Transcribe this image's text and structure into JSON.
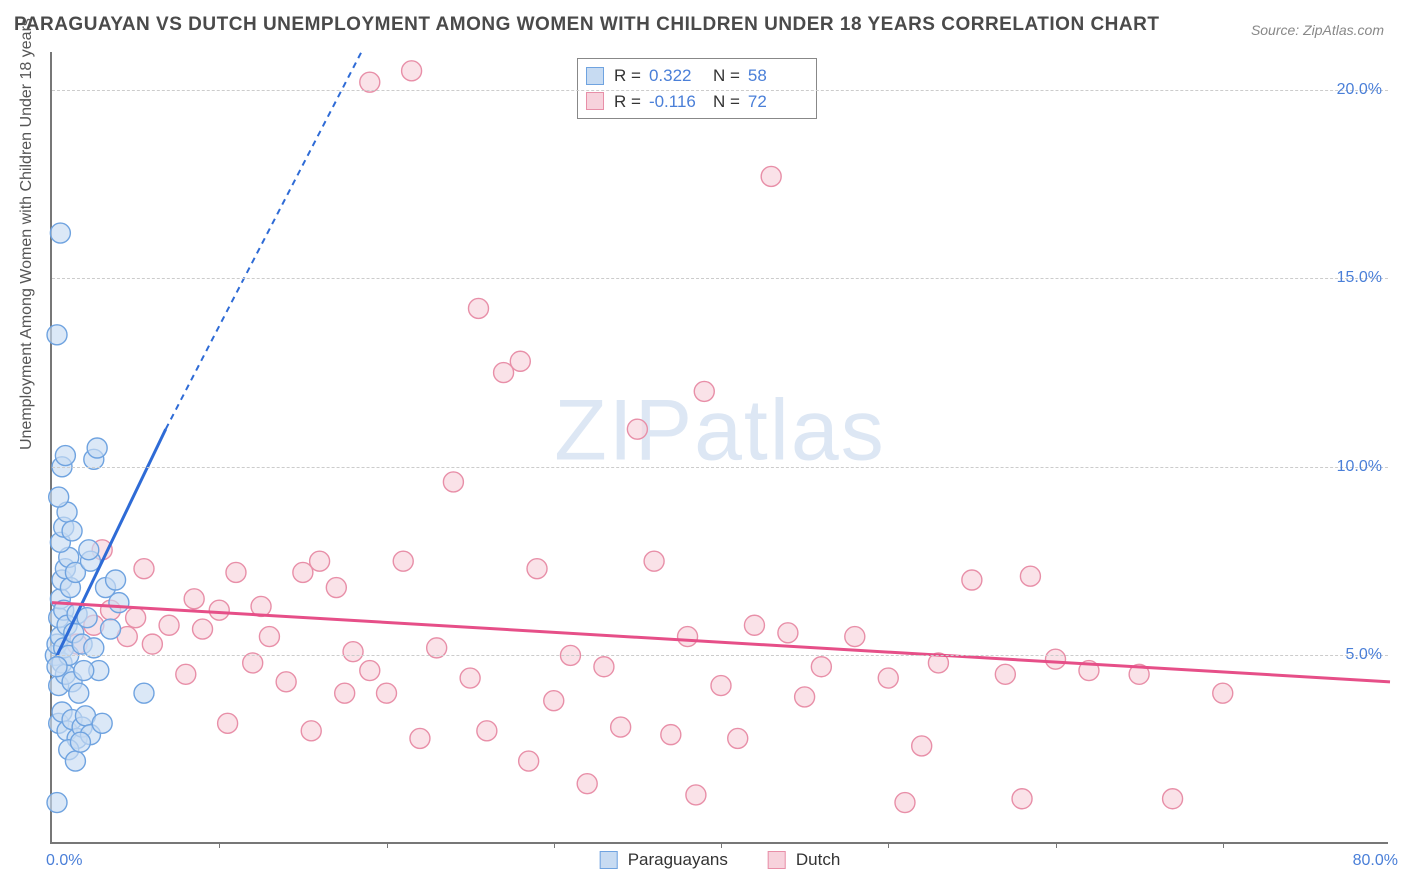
{
  "title": "PARAGUAYAN VS DUTCH UNEMPLOYMENT AMONG WOMEN WITH CHILDREN UNDER 18 YEARS CORRELATION CHART",
  "source": "Source: ZipAtlas.com",
  "ylabel": "Unemployment Among Women with Children Under 18 years",
  "watermark_a": "ZIP",
  "watermark_b": "atlas",
  "chart": {
    "type": "scatter",
    "background_color": "#ffffff",
    "grid_color": "#cccccc",
    "axis_color": "#777777",
    "tick_label_color": "#4a7fd8",
    "xlim": [
      0,
      80
    ],
    "ylim": [
      0,
      21
    ],
    "x_ticks_major": [
      0,
      80
    ],
    "x_ticks_minor": [
      10,
      20,
      30,
      40,
      50,
      60,
      70
    ],
    "x_tick_labels": {
      "0": "0.0%",
      "80": "80.0%"
    },
    "y_ticks": [
      5,
      10,
      15,
      20
    ],
    "y_tick_labels": {
      "5": "5.0%",
      "10": "10.0%",
      "15": "15.0%",
      "20": "20.0%"
    },
    "marker_radius": 10,
    "marker_stroke_width": 1.4,
    "trend_line_width": 3,
    "trend_dash": "6,5"
  },
  "series": [
    {
      "name": "Paraguayans",
      "fill": "#c7dbf2",
      "stroke": "#6fa3e0",
      "line_color": "#2e6bd6",
      "r_label": "R  =",
      "r_value": "0.322",
      "n_label": "N  =",
      "n_value": "58",
      "trend": {
        "solid": {
          "x1": 0.3,
          "y1": 5.0,
          "x2": 6.8,
          "y2": 11.0
        },
        "dashed": {
          "x1": 6.8,
          "y1": 11.0,
          "x2": 18.5,
          "y2": 21.0
        }
      },
      "points": [
        [
          0.2,
          5.0
        ],
        [
          0.3,
          5.3
        ],
        [
          0.4,
          4.2
        ],
        [
          0.5,
          5.5
        ],
        [
          0.4,
          6.0
        ],
        [
          0.6,
          4.8
        ],
        [
          0.7,
          5.2
        ],
        [
          0.8,
          4.5
        ],
        [
          0.5,
          6.5
        ],
        [
          0.7,
          6.2
        ],
        [
          0.9,
          5.8
        ],
        [
          1.0,
          5.0
        ],
        [
          1.2,
          4.3
        ],
        [
          1.3,
          5.6
        ],
        [
          1.5,
          6.1
        ],
        [
          0.6,
          7.0
        ],
        [
          0.8,
          7.3
        ],
        [
          1.0,
          7.6
        ],
        [
          1.1,
          6.8
        ],
        [
          1.4,
          7.2
        ],
        [
          0.4,
          3.2
        ],
        [
          0.6,
          3.5
        ],
        [
          0.9,
          3.0
        ],
        [
          1.2,
          3.3
        ],
        [
          1.5,
          2.8
        ],
        [
          1.8,
          3.1
        ],
        [
          2.0,
          3.4
        ],
        [
          2.3,
          2.9
        ],
        [
          0.3,
          4.7
        ],
        [
          0.5,
          8.0
        ],
        [
          0.7,
          8.4
        ],
        [
          0.9,
          8.8
        ],
        [
          1.2,
          8.3
        ],
        [
          0.4,
          9.2
        ],
        [
          0.6,
          10.0
        ],
        [
          0.8,
          10.3
        ],
        [
          2.5,
          10.2
        ],
        [
          2.7,
          10.5
        ],
        [
          0.3,
          13.5
        ],
        [
          0.5,
          16.2
        ],
        [
          5.5,
          4.0
        ],
        [
          3.0,
          3.2
        ],
        [
          3.5,
          5.7
        ],
        [
          4.0,
          6.4
        ],
        [
          2.3,
          7.5
        ],
        [
          1.8,
          5.3
        ],
        [
          2.1,
          6.0
        ],
        [
          2.5,
          5.2
        ],
        [
          2.8,
          4.6
        ],
        [
          3.2,
          6.8
        ],
        [
          3.8,
          7.0
        ],
        [
          1.6,
          4.0
        ],
        [
          1.9,
          4.6
        ],
        [
          2.2,
          7.8
        ],
        [
          0.3,
          1.1
        ],
        [
          1.0,
          2.5
        ],
        [
          1.4,
          2.2
        ],
        [
          1.7,
          2.7
        ]
      ]
    },
    {
      "name": "Dutch",
      "fill": "#f7d2dc",
      "stroke": "#e88fa8",
      "line_color": "#e64f88",
      "r_label": "R  =",
      "r_value": "-0.116",
      "n_label": "N  =",
      "n_value": "72",
      "trend": {
        "solid": {
          "x1": 0,
          "y1": 6.4,
          "x2": 80,
          "y2": 4.3
        },
        "dashed": null
      },
      "points": [
        [
          1.5,
          5.3
        ],
        [
          2.5,
          5.8
        ],
        [
          3.5,
          6.2
        ],
        [
          4.5,
          5.5
        ],
        [
          5.0,
          6.0
        ],
        [
          6.0,
          5.3
        ],
        [
          7.0,
          5.8
        ],
        [
          8.0,
          4.5
        ],
        [
          9.0,
          5.7
        ],
        [
          10.0,
          6.2
        ],
        [
          10.5,
          3.2
        ],
        [
          11.0,
          7.2
        ],
        [
          12.0,
          4.8
        ],
        [
          13.0,
          5.5
        ],
        [
          14.0,
          4.3
        ],
        [
          15.0,
          7.2
        ],
        [
          15.5,
          3.0
        ],
        [
          16.0,
          7.5
        ],
        [
          17.0,
          6.8
        ],
        [
          18.0,
          5.1
        ],
        [
          19.0,
          4.6
        ],
        [
          19.0,
          20.2
        ],
        [
          20.0,
          4.0
        ],
        [
          21.0,
          7.5
        ],
        [
          21.5,
          20.5
        ],
        [
          22.0,
          2.8
        ],
        [
          23.0,
          5.2
        ],
        [
          24.0,
          9.6
        ],
        [
          25.0,
          4.4
        ],
        [
          25.5,
          14.2
        ],
        [
          26.0,
          3.0
        ],
        [
          27.0,
          12.5
        ],
        [
          28.0,
          12.8
        ],
        [
          28.5,
          2.2
        ],
        [
          29.0,
          7.3
        ],
        [
          30.0,
          3.8
        ],
        [
          31.0,
          5.0
        ],
        [
          32.0,
          1.6
        ],
        [
          33.0,
          4.7
        ],
        [
          34.0,
          3.1
        ],
        [
          35.0,
          11.0
        ],
        [
          36.0,
          7.5
        ],
        [
          37.0,
          2.9
        ],
        [
          38.0,
          5.5
        ],
        [
          38.5,
          1.3
        ],
        [
          39.0,
          12.0
        ],
        [
          40.0,
          4.2
        ],
        [
          41.0,
          2.8
        ],
        [
          42.0,
          5.8
        ],
        [
          43.0,
          17.7
        ],
        [
          44.0,
          5.6
        ],
        [
          45.0,
          3.9
        ],
        [
          46.0,
          4.7
        ],
        [
          48.0,
          5.5
        ],
        [
          50.0,
          4.4
        ],
        [
          51.0,
          1.1
        ],
        [
          52.0,
          2.6
        ],
        [
          53.0,
          4.8
        ],
        [
          55.0,
          7.0
        ],
        [
          57.0,
          4.5
        ],
        [
          58.0,
          1.2
        ],
        [
          60.0,
          4.9
        ],
        [
          62.0,
          4.6
        ],
        [
          58.5,
          7.1
        ],
        [
          65.0,
          4.5
        ],
        [
          67.0,
          1.2
        ],
        [
          70.0,
          4.0
        ],
        [
          3.0,
          7.8
        ],
        [
          5.5,
          7.3
        ],
        [
          8.5,
          6.5
        ],
        [
          12.5,
          6.3
        ],
        [
          17.5,
          4.0
        ]
      ]
    }
  ],
  "legend": {
    "items": [
      {
        "label": "Paraguayans",
        "fill": "#c7dbf2",
        "stroke": "#6fa3e0"
      },
      {
        "label": "Dutch",
        "fill": "#f7d2dc",
        "stroke": "#e88fa8"
      }
    ]
  }
}
